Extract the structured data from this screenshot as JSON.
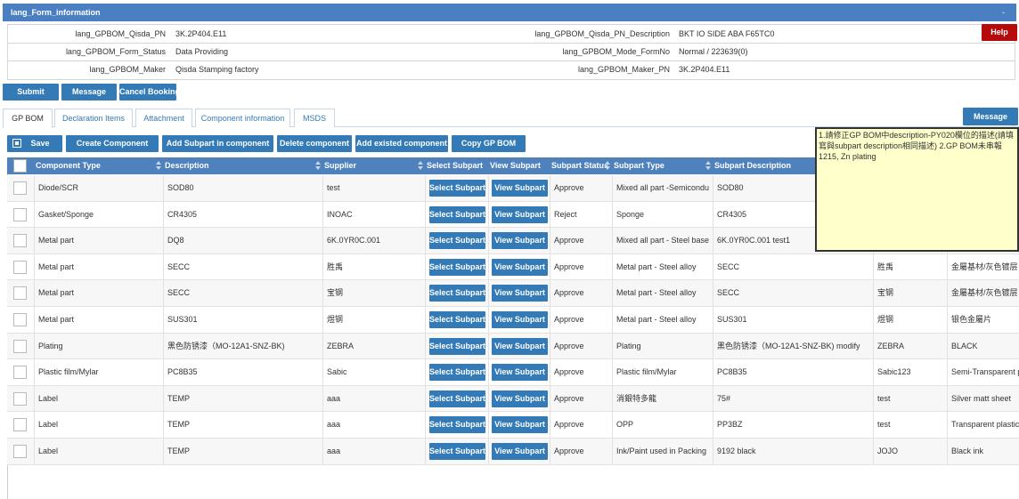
{
  "header": {
    "title": "lang_Form_information",
    "collapse": "-"
  },
  "info": {
    "rows": [
      [
        {
          "label": "lang_GPBOM_Qisda_PN",
          "value": "3K.2P404.E11"
        },
        {
          "label": "lang_GPBOM_Qisda_PN_Description",
          "value": "BKT IO SIDE ABA F65TC0"
        }
      ],
      [
        {
          "label": "lang_GPBOM_Form_Status",
          "value": "Data Providing"
        },
        {
          "label": "lang_GPBOM_Mode_FormNo",
          "value": "Normal / 223639(0)"
        }
      ],
      [
        {
          "label": "lang_GPBOM_Maker",
          "value": "Qisda Stamping factory"
        },
        {
          "label": "lang_GPBOM_Maker_PN",
          "value": "3K.2P404.E11"
        }
      ]
    ],
    "help": "Help"
  },
  "actions": [
    "Submit",
    "Message",
    "Cancel Booking"
  ],
  "tabs": {
    "items": [
      "GP BOM",
      "Declaration Items",
      "Attachment",
      "Component information",
      "MSDS"
    ],
    "active": 0
  },
  "message_button": "Message",
  "toolbar": [
    "Save",
    "Create Component",
    "Add Subpart in component",
    "Delete component",
    "Add existed component",
    "Copy GP BOM"
  ],
  "table": {
    "columns": [
      "Component Type",
      "Description",
      "Supplier",
      "Select Subpart",
      "View Subpart",
      "Subpart Status",
      "Subpart Type",
      "Subpart Description"
    ],
    "row_buttons": [
      "Select Subpart",
      "View Subpart"
    ],
    "rows": [
      [
        "Diode/SCR",
        "SOD80",
        "test",
        "Approve",
        "Mixed all part -Semicondu",
        "SOD80"
      ],
      [
        "Gasket/Sponge",
        "CR4305",
        "INOAC",
        "Reject",
        "Sponge",
        "CR4305"
      ],
      [
        "Metal part",
        "DQ8",
        "6K.0YR0C.001",
        "Approve",
        "Mixed all part - Steel base",
        "6K.0YR0C.001 test1"
      ],
      [
        "Metal part",
        "SECC",
        "胜禹",
        "Approve",
        "Metal part - Steel alloy",
        "SECC",
        "胜禹",
        "金屬基材/灰色镀层"
      ],
      [
        "Metal part",
        "SECC",
        "宝钢",
        "Approve",
        "Metal part - Steel alloy",
        "SECC",
        "宝钢",
        "金屬基材/灰色镀层"
      ],
      [
        "Metal part",
        "SUS301",
        "煜钢",
        "Approve",
        "Metal part - Steel alloy",
        "SUS301",
        "煜钢",
        "银色金屬片"
      ],
      [
        "Plating",
        "黑色防锈漆（MO-12A1-SNZ-BK)",
        "ZEBRA",
        "Approve",
        "Plating",
        "黑色防锈漆（MO-12A1-SNZ-BK) modify",
        "ZEBRA",
        "BLACK"
      ],
      [
        "Plastic film/Mylar",
        "PC8B35",
        "Sabic",
        "Approve",
        "Plastic film/Mylar",
        "PC8B35",
        "Sabic123",
        "Semi-Transparent p"
      ],
      [
        "Label",
        "TEMP",
        "aaa",
        "Approve",
        "消銀特多龍",
        "75#",
        "test",
        "Silver matt sheet"
      ],
      [
        "Label",
        "TEMP",
        "aaa",
        "Approve",
        "OPP",
        "PP3BZ",
        "test",
        "Transparent plastic"
      ],
      [
        "Label",
        "TEMP",
        "aaa",
        "Approve",
        "Ink/Paint used in Packing",
        "9192 black",
        "JOJO",
        "Black ink"
      ]
    ]
  },
  "note": "1.請修正GP BOM中description-PY020欄位的描述(請填寫與subpart description相同描述) 2.GP BOM未串報1215, Zn plating"
}
